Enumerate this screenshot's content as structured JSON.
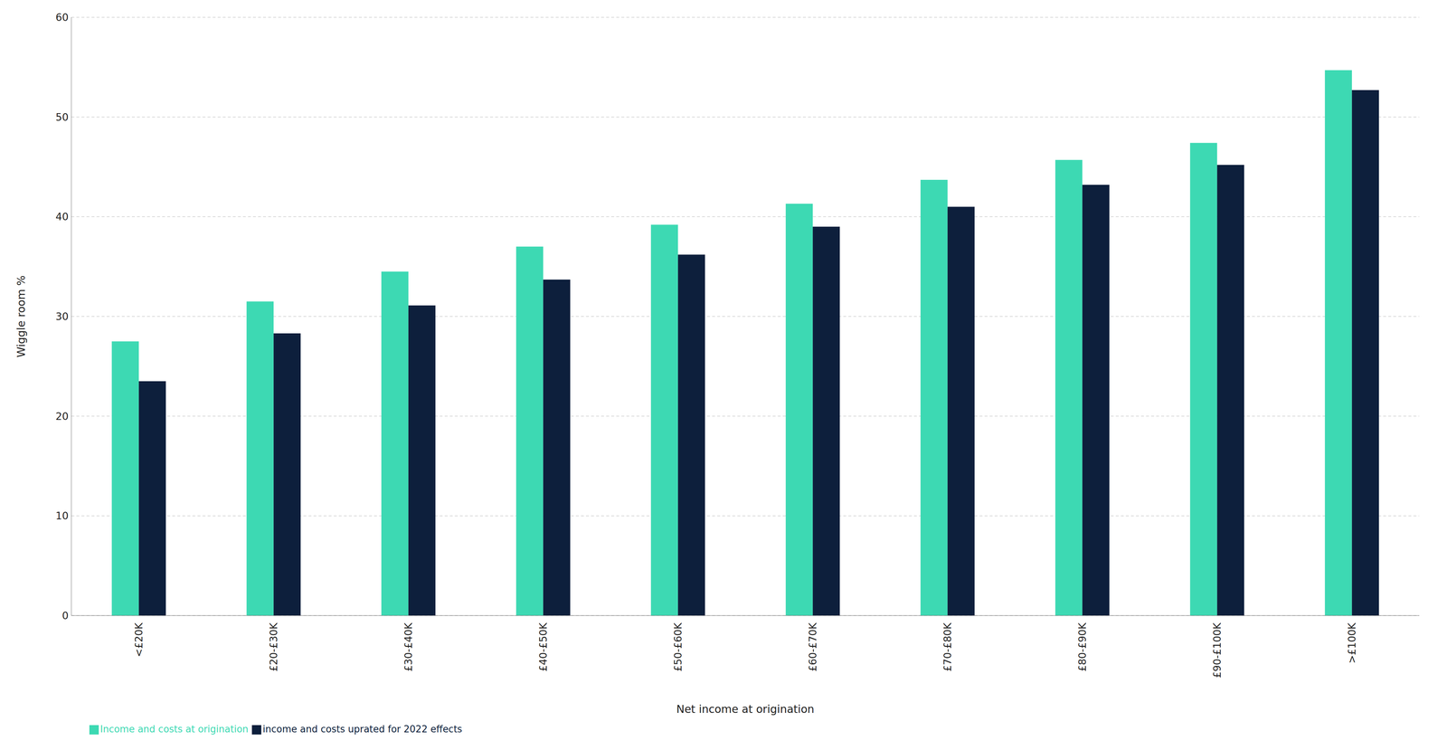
{
  "chart_data": {
    "type": "bar",
    "categories": [
      "<£20K",
      "£20-£30K",
      "£30-£40K",
      "£40-£50K",
      "£50-£60K",
      "£60-£70K",
      "£70-£80K",
      "£80-£90K",
      "£90-£100K",
      ">£100K"
    ],
    "series": [
      {
        "name": "Income and costs at origination",
        "color": "#3DD9B3",
        "values": [
          27.5,
          31.5,
          34.5,
          37.0,
          39.2,
          41.3,
          43.7,
          45.7,
          47.4,
          54.7
        ]
      },
      {
        "name": "income and costs uprated for 2022 effects",
        "color": "#0D1F3C",
        "values": [
          23.5,
          28.3,
          31.1,
          33.7,
          36.2,
          39.0,
          41.0,
          43.2,
          45.2,
          52.7
        ]
      }
    ],
    "xlabel": "Net income at origination",
    "ylabel": "Wiggle room %",
    "ylim": [
      0,
      60
    ],
    "yticks": [
      0,
      10,
      20,
      30,
      40,
      50,
      60
    ],
    "grid": true,
    "legend": "lower left"
  }
}
